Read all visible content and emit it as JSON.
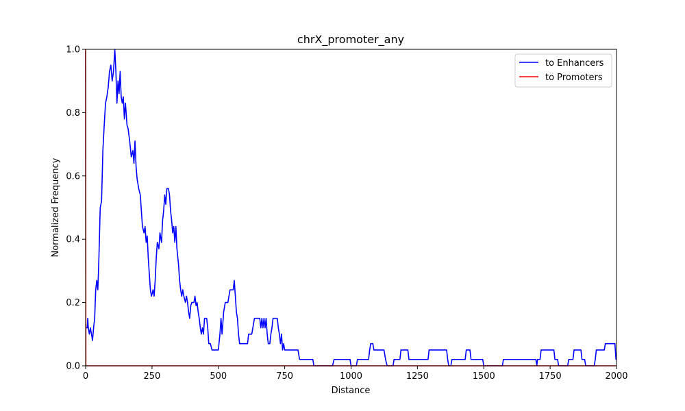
{
  "chart_data": {
    "type": "line",
    "title": "chrX_promoter_any",
    "xlabel": "Distance",
    "ylabel": "Normalized Frequency",
    "xlim": [
      0,
      2000
    ],
    "ylim": [
      0,
      1
    ],
    "x_ticks": [
      "0",
      "250",
      "500",
      "750",
      "1000",
      "1250",
      "1500",
      "1750",
      "2000"
    ],
    "y_ticks": [
      "0.0",
      "0.2",
      "0.4",
      "0.6",
      "0.8",
      "1.0"
    ],
    "grid": false,
    "legend_position": "top-right",
    "series": [
      {
        "name": "to Enhancers",
        "color": "#0000ff",
        "points": [
          [
            0,
            0.12
          ],
          [
            6,
            0.12
          ],
          [
            8,
            0.15
          ],
          [
            10,
            0.12
          ],
          [
            14,
            0.1
          ],
          [
            18,
            0.12
          ],
          [
            22,
            0.1
          ],
          [
            26,
            0.08
          ],
          [
            30,
            0.12
          ],
          [
            34,
            0.15
          ],
          [
            38,
            0.24
          ],
          [
            42,
            0.27
          ],
          [
            46,
            0.24
          ],
          [
            50,
            0.34
          ],
          [
            55,
            0.5
          ],
          [
            60,
            0.52
          ],
          [
            65,
            0.68
          ],
          [
            70,
            0.76
          ],
          [
            75,
            0.83
          ],
          [
            80,
            0.85
          ],
          [
            85,
            0.88
          ],
          [
            90,
            0.93
          ],
          [
            95,
            0.95
          ],
          [
            100,
            0.9
          ],
          [
            105,
            0.93
          ],
          [
            110,
            1.0
          ],
          [
            114,
            0.93
          ],
          [
            118,
            0.83
          ],
          [
            122,
            0.9
          ],
          [
            126,
            0.86
          ],
          [
            130,
            0.93
          ],
          [
            134,
            0.85
          ],
          [
            138,
            0.83
          ],
          [
            142,
            0.85
          ],
          [
            146,
            0.78
          ],
          [
            150,
            0.83
          ],
          [
            156,
            0.76
          ],
          [
            160,
            0.75
          ],
          [
            166,
            0.71
          ],
          [
            172,
            0.66
          ],
          [
            178,
            0.68
          ],
          [
            182,
            0.64
          ],
          [
            186,
            0.71
          ],
          [
            190,
            0.63
          ],
          [
            194,
            0.59
          ],
          [
            200,
            0.56
          ],
          [
            206,
            0.54
          ],
          [
            210,
            0.49
          ],
          [
            214,
            0.44
          ],
          [
            220,
            0.42
          ],
          [
            224,
            0.44
          ],
          [
            228,
            0.39
          ],
          [
            232,
            0.41
          ],
          [
            236,
            0.34
          ],
          [
            240,
            0.29
          ],
          [
            244,
            0.24
          ],
          [
            248,
            0.22
          ],
          [
            254,
            0.24
          ],
          [
            258,
            0.22
          ],
          [
            262,
            0.27
          ],
          [
            266,
            0.34
          ],
          [
            270,
            0.39
          ],
          [
            276,
            0.37
          ],
          [
            280,
            0.42
          ],
          [
            286,
            0.39
          ],
          [
            290,
            0.46
          ],
          [
            294,
            0.49
          ],
          [
            298,
            0.54
          ],
          [
            302,
            0.51
          ],
          [
            306,
            0.56
          ],
          [
            312,
            0.56
          ],
          [
            316,
            0.54
          ],
          [
            320,
            0.49
          ],
          [
            324,
            0.46
          ],
          [
            328,
            0.42
          ],
          [
            332,
            0.44
          ],
          [
            336,
            0.39
          ],
          [
            340,
            0.44
          ],
          [
            344,
            0.37
          ],
          [
            350,
            0.32
          ],
          [
            354,
            0.27
          ],
          [
            358,
            0.24
          ],
          [
            362,
            0.22
          ],
          [
            366,
            0.24
          ],
          [
            370,
            0.22
          ],
          [
            376,
            0.2
          ],
          [
            380,
            0.22
          ],
          [
            384,
            0.2
          ],
          [
            388,
            0.17
          ],
          [
            392,
            0.15
          ],
          [
            396,
            0.19
          ],
          [
            400,
            0.2
          ],
          [
            408,
            0.2
          ],
          [
            412,
            0.22
          ],
          [
            416,
            0.19
          ],
          [
            420,
            0.2
          ],
          [
            424,
            0.17
          ],
          [
            428,
            0.15
          ],
          [
            432,
            0.12
          ],
          [
            436,
            0.1
          ],
          [
            440,
            0.12
          ],
          [
            444,
            0.1
          ],
          [
            448,
            0.15
          ],
          [
            456,
            0.15
          ],
          [
            460,
            0.12
          ],
          [
            464,
            0.07
          ],
          [
            470,
            0.07
          ],
          [
            476,
            0.05
          ],
          [
            490,
            0.05
          ],
          [
            500,
            0.05
          ],
          [
            506,
            0.1
          ],
          [
            510,
            0.15
          ],
          [
            514,
            0.1
          ],
          [
            520,
            0.17
          ],
          [
            526,
            0.2
          ],
          [
            536,
            0.2
          ],
          [
            540,
            0.22
          ],
          [
            544,
            0.24
          ],
          [
            556,
            0.24
          ],
          [
            560,
            0.27
          ],
          [
            564,
            0.22
          ],
          [
            568,
            0.17
          ],
          [
            572,
            0.15
          ],
          [
            576,
            0.1
          ],
          [
            580,
            0.07
          ],
          [
            592,
            0.07
          ],
          [
            610,
            0.07
          ],
          [
            614,
            0.1
          ],
          [
            626,
            0.1
          ],
          [
            630,
            0.12
          ],
          [
            636,
            0.15
          ],
          [
            656,
            0.15
          ],
          [
            660,
            0.12
          ],
          [
            664,
            0.15
          ],
          [
            668,
            0.12
          ],
          [
            672,
            0.15
          ],
          [
            676,
            0.12
          ],
          [
            680,
            0.15
          ],
          [
            684,
            0.1
          ],
          [
            688,
            0.07
          ],
          [
            694,
            0.07
          ],
          [
            698,
            0.1
          ],
          [
            702,
            0.12
          ],
          [
            706,
            0.15
          ],
          [
            722,
            0.15
          ],
          [
            726,
            0.12
          ],
          [
            730,
            0.1
          ],
          [
            734,
            0.07
          ],
          [
            738,
            0.1
          ],
          [
            742,
            0.05
          ],
          [
            746,
            0.07
          ],
          [
            750,
            0.05
          ],
          [
            800,
            0.05
          ],
          [
            806,
            0.02
          ],
          [
            856,
            0.02
          ],
          [
            860,
            0.0
          ],
          [
            930,
            0.0
          ],
          [
            936,
            0.02
          ],
          [
            996,
            0.02
          ],
          [
            1000,
            0.0
          ],
          [
            1020,
            0.0
          ],
          [
            1024,
            0.02
          ],
          [
            1066,
            0.02
          ],
          [
            1070,
            0.05
          ],
          [
            1074,
            0.07
          ],
          [
            1082,
            0.07
          ],
          [
            1086,
            0.05
          ],
          [
            1124,
            0.05
          ],
          [
            1130,
            0.02
          ],
          [
            1136,
            0.0
          ],
          [
            1158,
            0.0
          ],
          [
            1162,
            0.02
          ],
          [
            1184,
            0.02
          ],
          [
            1188,
            0.05
          ],
          [
            1214,
            0.05
          ],
          [
            1218,
            0.02
          ],
          [
            1290,
            0.02
          ],
          [
            1294,
            0.05
          ],
          [
            1360,
            0.05
          ],
          [
            1364,
            0.02
          ],
          [
            1368,
            0.0
          ],
          [
            1376,
            0.0
          ],
          [
            1380,
            0.02
          ],
          [
            1430,
            0.02
          ],
          [
            1434,
            0.05
          ],
          [
            1448,
            0.05
          ],
          [
            1452,
            0.02
          ],
          [
            1496,
            0.02
          ],
          [
            1500,
            0.0
          ],
          [
            1570,
            0.0
          ],
          [
            1574,
            0.02
          ],
          [
            1696,
            0.02
          ],
          [
            1700,
            0.0
          ],
          [
            1702,
            0.02
          ],
          [
            1712,
            0.02
          ],
          [
            1716,
            0.05
          ],
          [
            1764,
            0.05
          ],
          [
            1768,
            0.02
          ],
          [
            1778,
            0.02
          ],
          [
            1782,
            0.0
          ],
          [
            1816,
            0.0
          ],
          [
            1820,
            0.02
          ],
          [
            1836,
            0.02
          ],
          [
            1840,
            0.05
          ],
          [
            1866,
            0.05
          ],
          [
            1870,
            0.02
          ],
          [
            1880,
            0.02
          ],
          [
            1884,
            0.0
          ],
          [
            1916,
            0.0
          ],
          [
            1920,
            0.02
          ],
          [
            1924,
            0.05
          ],
          [
            1954,
            0.05
          ],
          [
            1958,
            0.07
          ],
          [
            1994,
            0.07
          ],
          [
            1998,
            0.02
          ],
          [
            2000,
            0.02
          ]
        ]
      },
      {
        "name": "to Promoters",
        "color": "#ff0000",
        "points": [
          [
            0,
            1.0
          ],
          [
            1,
            0.0
          ],
          [
            2000,
            0.0
          ]
        ]
      }
    ]
  }
}
